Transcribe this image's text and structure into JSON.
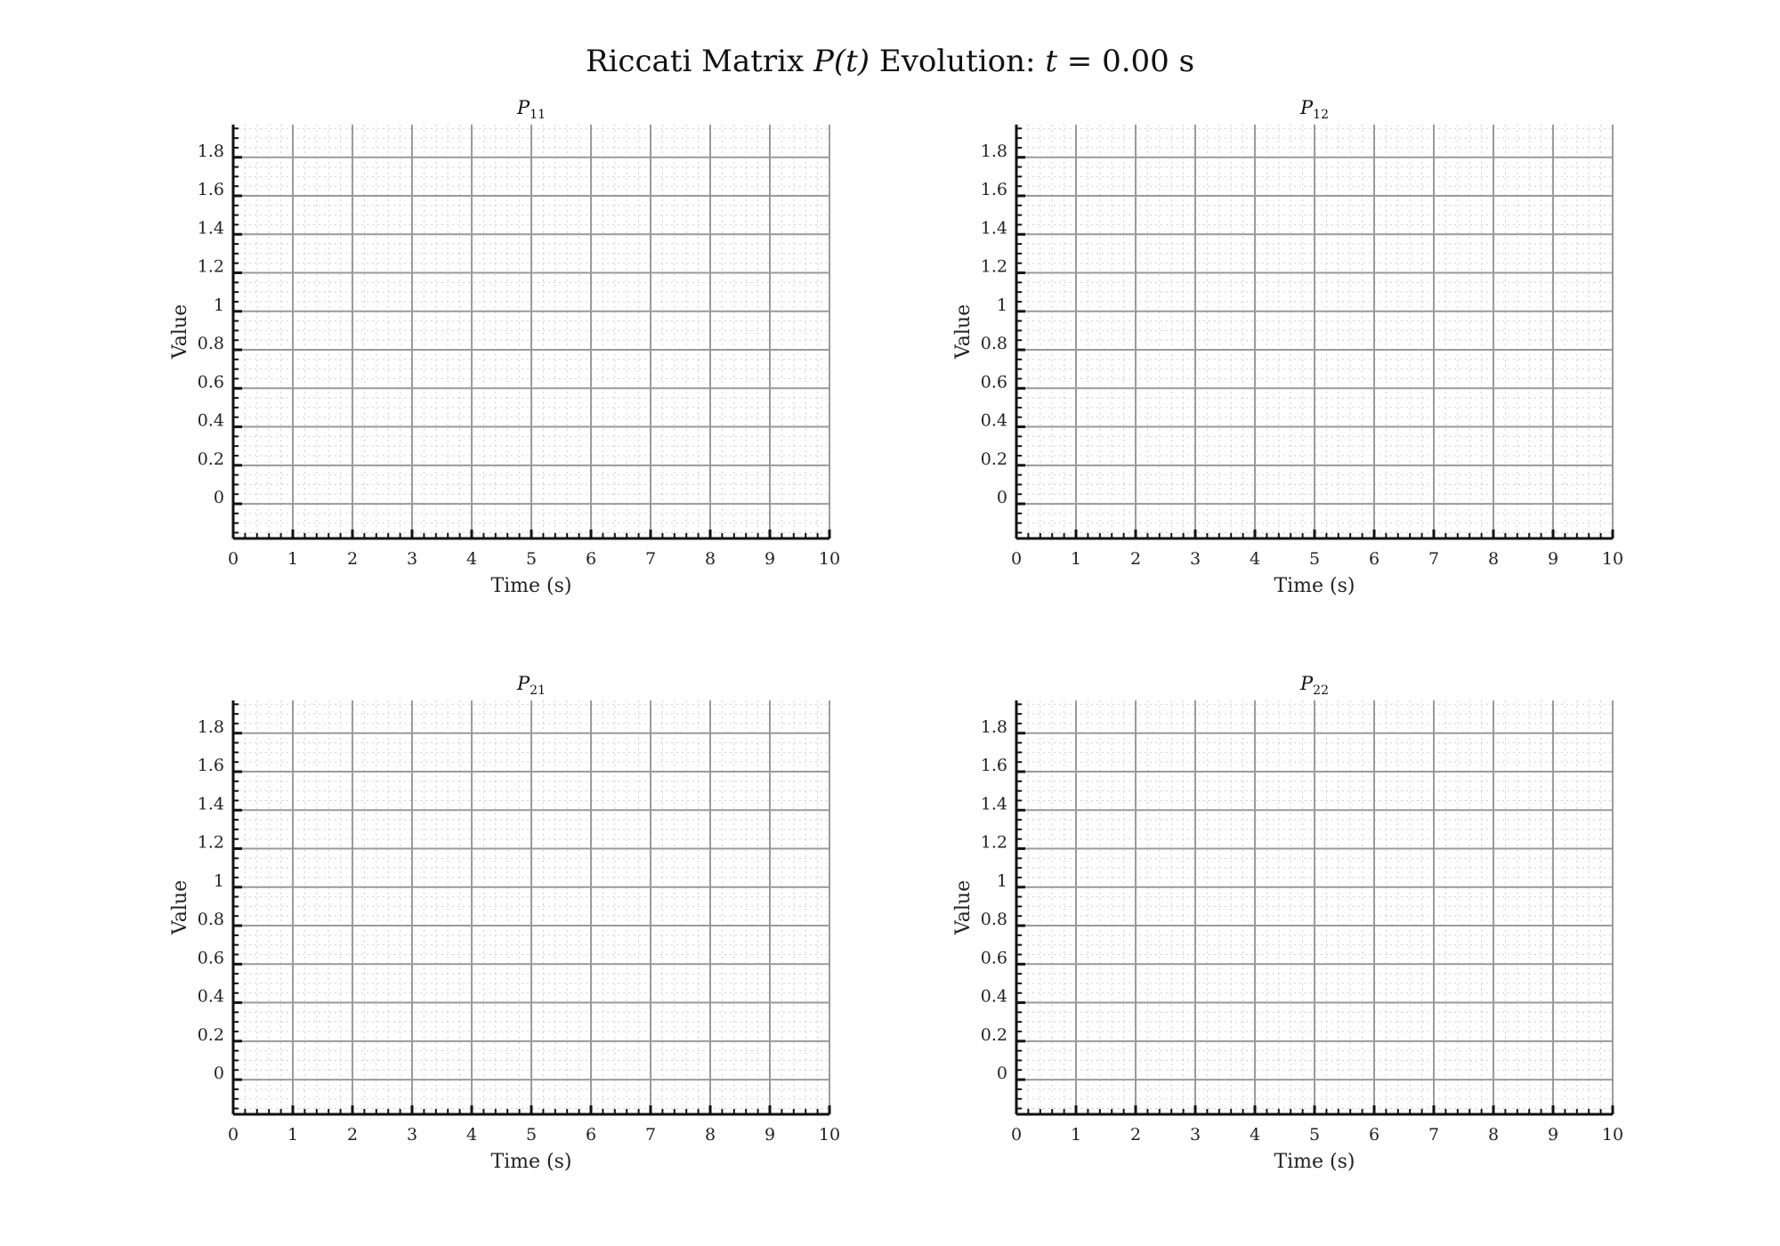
{
  "figure_title": {
    "prefix": "Riccati Matrix ",
    "symbol": "P(t)",
    "middle": " Evolution: ",
    "var": "t",
    "value": " = 0.00 s"
  },
  "chart_data": [
    {
      "type": "line",
      "title": {
        "symbol": "P",
        "subscript": "11"
      },
      "xlabel": "Time (s)",
      "ylabel": "Value",
      "xlim": [
        0,
        10
      ],
      "ylim": [
        -0.18,
        1.97
      ],
      "x_ticks": [
        "0",
        "1",
        "2",
        "3",
        "4",
        "5",
        "6",
        "7",
        "8",
        "9",
        "10"
      ],
      "y_ticks": [
        "0",
        "0.2",
        "0.4",
        "0.6",
        "0.8",
        "1",
        "1.2",
        "1.4",
        "1.6",
        "1.8"
      ],
      "series": [],
      "grid": true
    },
    {
      "type": "line",
      "title": {
        "symbol": "P",
        "subscript": "12"
      },
      "xlabel": "Time (s)",
      "ylabel": "Value",
      "xlim": [
        0,
        10
      ],
      "ylim": [
        -0.18,
        1.97
      ],
      "x_ticks": [
        "0",
        "1",
        "2",
        "3",
        "4",
        "5",
        "6",
        "7",
        "8",
        "9",
        "10"
      ],
      "y_ticks": [
        "0",
        "0.2",
        "0.4",
        "0.6",
        "0.8",
        "1",
        "1.2",
        "1.4",
        "1.6",
        "1.8"
      ],
      "series": [],
      "grid": true
    },
    {
      "type": "line",
      "title": {
        "symbol": "P",
        "subscript": "21"
      },
      "xlabel": "Time (s)",
      "ylabel": "Value",
      "xlim": [
        0,
        10
      ],
      "ylim": [
        -0.18,
        1.97
      ],
      "x_ticks": [
        "0",
        "1",
        "2",
        "3",
        "4",
        "5",
        "6",
        "7",
        "8",
        "9",
        "10"
      ],
      "y_ticks": [
        "0",
        "0.2",
        "0.4",
        "0.6",
        "0.8",
        "1",
        "1.2",
        "1.4",
        "1.6",
        "1.8"
      ],
      "series": [],
      "grid": true
    },
    {
      "type": "line",
      "title": {
        "symbol": "P",
        "subscript": "22"
      },
      "xlabel": "Time (s)",
      "ylabel": "Value",
      "xlim": [
        0,
        10
      ],
      "ylim": [
        -0.18,
        1.97
      ],
      "x_ticks": [
        "0",
        "1",
        "2",
        "3",
        "4",
        "5",
        "6",
        "7",
        "8",
        "9",
        "10"
      ],
      "y_ticks": [
        "0",
        "0.2",
        "0.4",
        "0.6",
        "0.8",
        "1",
        "1.2",
        "1.4",
        "1.6",
        "1.8"
      ],
      "series": [],
      "grid": true
    }
  ]
}
